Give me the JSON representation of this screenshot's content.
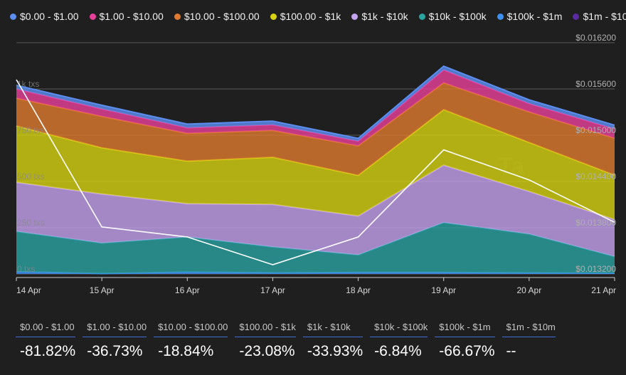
{
  "legend": [
    {
      "label": "$0.00 - $1.00",
      "color": "#5b8ef0"
    },
    {
      "label": "$1.00 - $10.00",
      "color": "#e8409a"
    },
    {
      "label": "$10.00 - $100.00",
      "color": "#e07a30"
    },
    {
      "label": "$100.00 - $1k",
      "color": "#d7d312"
    },
    {
      "label": "$1k - $10k",
      "color": "#c6a3f0"
    },
    {
      "label": "$10k - $100k",
      "color": "#2aa3a3"
    },
    {
      "label": "$100k - $1m",
      "color": "#3d8ff0"
    },
    {
      "label": "$1m - $10m",
      "color": "#5a2aa0"
    }
  ],
  "chart_data": {
    "type": "area",
    "stacked": true,
    "categories": [
      "14 Apr",
      "15 Apr",
      "16 Apr",
      "17 Apr",
      "18 Apr",
      "19 Apr",
      "20 Apr",
      "21 Apr"
    ],
    "left_axis": {
      "ticks": [
        "0 txs",
        "250 txs",
        "500 txs",
        "750 txs",
        "1k txs"
      ],
      "ylim": [
        0,
        1250
      ]
    },
    "right_axis": {
      "ticks": [
        "$0.013200",
        "$0.013800",
        "$0.014400",
        "$0.015000",
        "$0.015600",
        "$0.016200"
      ],
      "ylim": [
        0.0132,
        0.0162
      ]
    },
    "series": [
      {
        "name": "$100k - $1m",
        "color": "#3d8ff0",
        "values": [
          12,
          2,
          10,
          6,
          8,
          8,
          6,
          4
        ]
      },
      {
        "name": "$10k - $100k",
        "color": "#2aa3a3",
        "values": [
          218,
          165,
          190,
          140,
          95,
          270,
          210,
          90
        ]
      },
      {
        "name": "$1k - $10k",
        "color": "#c6a3f0",
        "values": [
          265,
          265,
          180,
          230,
          210,
          310,
          230,
          200
        ]
      },
      {
        "name": "$100.00 - $1k",
        "color": "#d7d312",
        "values": [
          305,
          250,
          230,
          255,
          220,
          300,
          265,
          240
        ]
      },
      {
        "name": "$10.00 - $100.00",
        "color": "#e07a30",
        "values": [
          150,
          170,
          150,
          145,
          160,
          145,
          165,
          200
        ]
      },
      {
        "name": "$1.00 - $10.00",
        "color": "#e8409a",
        "values": [
          50,
          40,
          30,
          30,
          25,
          70,
          45,
          50
        ]
      },
      {
        "name": "$0.00 - $1.00",
        "color": "#5b8ef0",
        "values": [
          20,
          20,
          20,
          20,
          15,
          20,
          20,
          20
        ]
      }
    ],
    "price_line": {
      "color": "#ffffff",
      "values": [
        0.01572,
        0.01381,
        0.01368,
        0.01332,
        0.01368,
        0.01481,
        0.01442,
        0.01387
      ]
    },
    "watermark": "Ta"
  },
  "stats": [
    {
      "label": "$0.00 - $1.00",
      "value": "-81.82%"
    },
    {
      "label": "$1.00 - $10.00",
      "value": "-36.73%"
    },
    {
      "label": "$10.00 - $100.00",
      "value": "-18.84%"
    },
    {
      "label": "$100.00 - $1k",
      "value": "-23.08%"
    },
    {
      "label": "$1k - $10k",
      "value": "-33.93%"
    },
    {
      "label": "$10k - $100k",
      "value": "-6.84%"
    },
    {
      "label": "$100k - $1m",
      "value": "-66.67%"
    },
    {
      "label": "$1m - $10m",
      "value": "--"
    }
  ]
}
